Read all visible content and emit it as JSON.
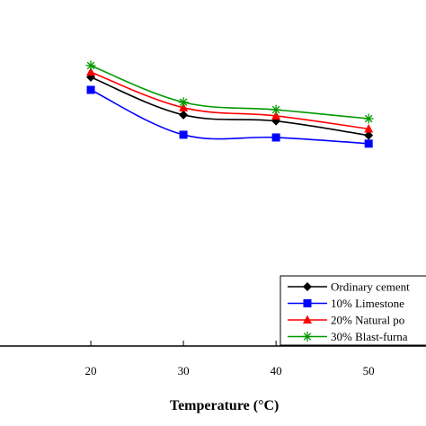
{
  "chart_data": {
    "type": "line",
    "title": "",
    "xlabel": "Temperature (°C)",
    "ylabel": "",
    "x": [
      20,
      30,
      40,
      50
    ],
    "xlim": [
      10,
      56
    ],
    "ylim": [
      0,
      100
    ],
    "grid": false,
    "legend_position": "bottom-right",
    "series": [
      {
        "name": "Ordinary cement",
        "values": [
          78.5,
          67.5,
          65.7,
          61.5
        ],
        "color": "#000000",
        "marker": "diamond"
      },
      {
        "name": "10% Limestone",
        "values": [
          74.8,
          61.7,
          60.9,
          59.1
        ],
        "color": "#0000ff",
        "marker": "square"
      },
      {
        "name": "20% Natural po",
        "values": [
          80.0,
          69.6,
          67.2,
          63.4
        ],
        "color": "#ff0000",
        "marker": "triangle"
      },
      {
        "name": "30% Blast-furna",
        "values": [
          81.9,
          71.2,
          69.0,
          66.4
        ],
        "color": "#009900",
        "marker": "asterisk"
      }
    ]
  }
}
